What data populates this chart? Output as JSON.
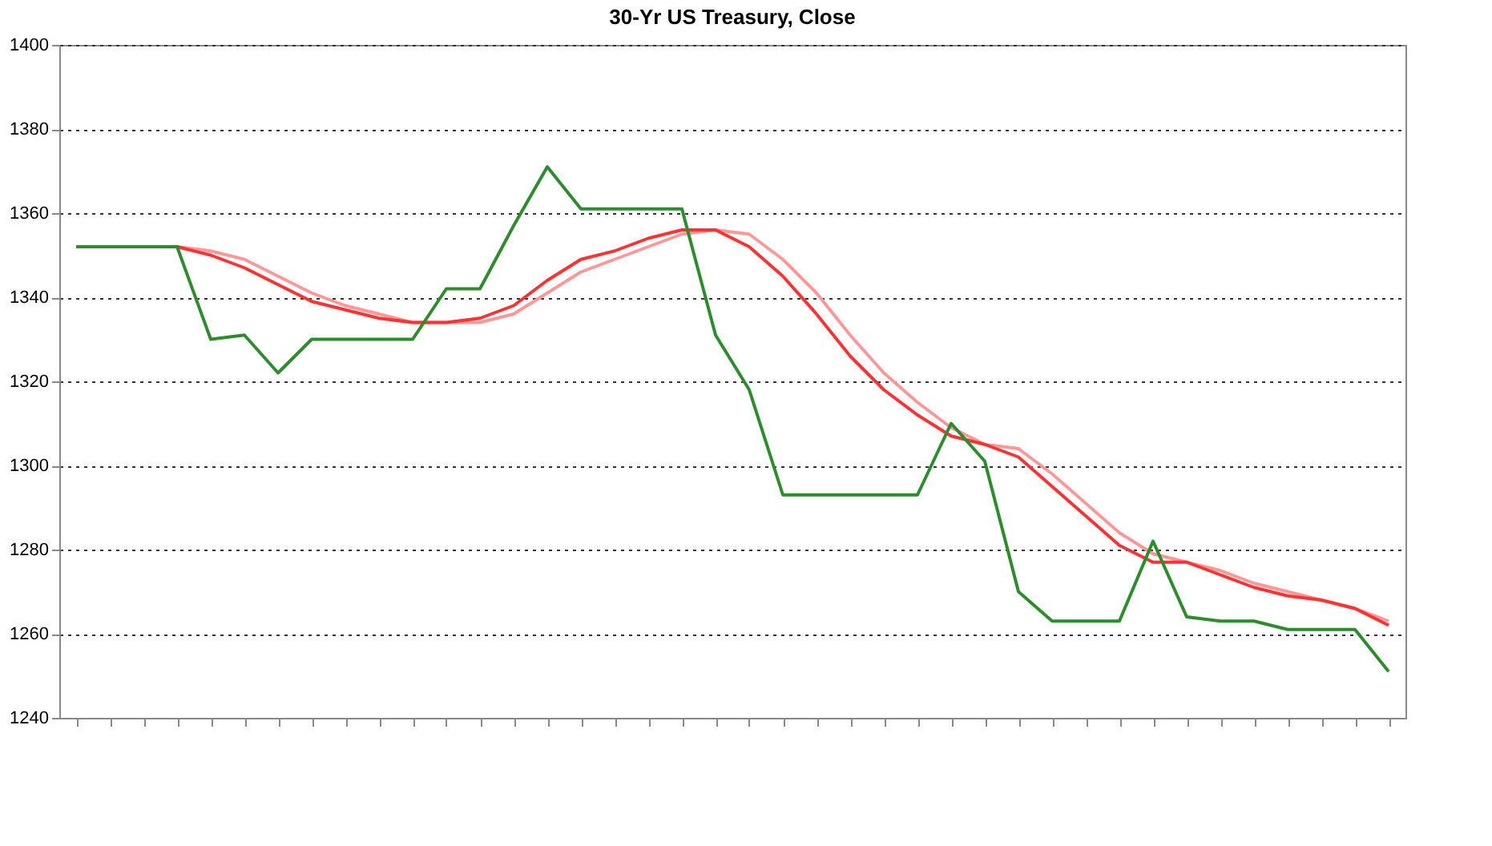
{
  "chart_data": {
    "type": "line",
    "title": "30-Yr US Treasury, Close",
    "categories": [
      null,
      null,
      null,
      null,
      null,
      null,
      null,
      null,
      null,
      null,
      null,
      null,
      null,
      null,
      null,
      null,
      null,
      null,
      null,
      null,
      null,
      null,
      null,
      null,
      null,
      null,
      null,
      null,
      null,
      null,
      null,
      null,
      null,
      null,
      null,
      null,
      null,
      null,
      null,
      null
    ],
    "series": [
      {
        "color": "#ff9999",
        "values": [
          null,
          null,
          null,
          1352,
          1351,
          1349,
          1345,
          1341,
          1338,
          1336,
          1334,
          1334,
          1334,
          1336,
          1341,
          1346,
          1349,
          1352,
          1355,
          1356,
          1355,
          1349,
          1341,
          1331,
          1322,
          1315,
          1309,
          1305,
          1304,
          1298,
          1291,
          1284,
          1279,
          1277,
          1275,
          1272,
          1270,
          1268,
          1266,
          1263
        ]
      },
      {
        "color": "#ff3333",
        "values": [
          null,
          null,
          null,
          1352,
          1350,
          1347,
          1343,
          1339,
          1337,
          1335,
          1334,
          1334,
          1335,
          1338,
          1344,
          1349,
          1351,
          1354,
          1356,
          1356,
          1352,
          1345,
          1336,
          1326,
          1318,
          1312,
          1307,
          1305,
          1302,
          1295,
          1288,
          1281,
          1277,
          1277,
          1274,
          1271,
          1269,
          1268,
          1266,
          1262
        ]
      },
      {
        "color": "#2e8b2e",
        "values": [
          1352,
          1352,
          1352,
          1352,
          1330,
          1331,
          1322,
          1330,
          1330,
          1330,
          1330,
          1342,
          1342,
          1357,
          1371,
          1361,
          1361,
          1361,
          1361,
          1331,
          1318,
          1293,
          1293,
          1293,
          1293,
          1293,
          1310,
          1301,
          1270,
          1263,
          1263,
          1263,
          1282,
          1264,
          1263,
          1263,
          1261,
          1261,
          1261,
          1251
        ]
      }
    ],
    "ylim": [
      1240,
      1400
    ],
    "yticks": [
      1240,
      1260,
      1280,
      1300,
      1320,
      1340,
      1360,
      1380,
      1400
    ],
    "grid": "y",
    "legend": false,
    "marker": "none",
    "line_style": "solid"
  }
}
